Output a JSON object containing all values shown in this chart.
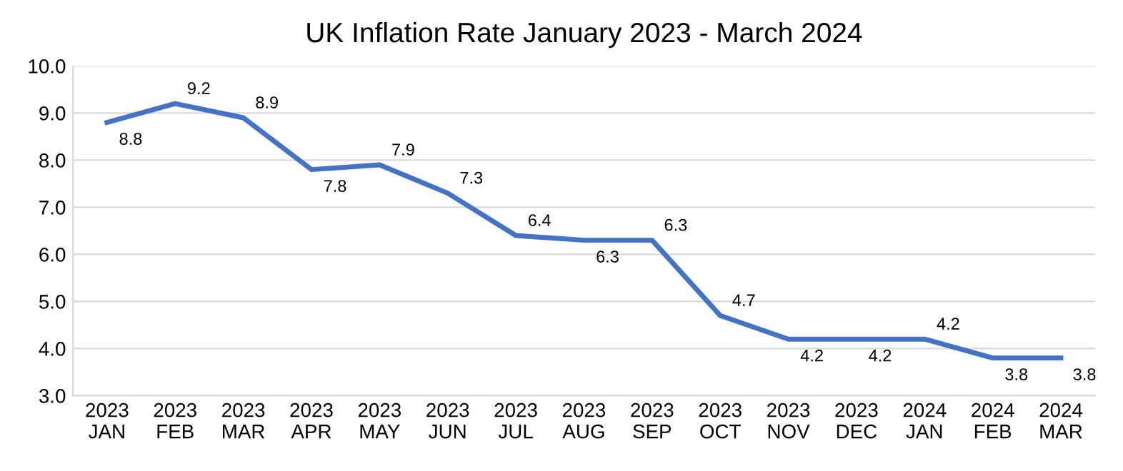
{
  "chart_data": {
    "type": "line",
    "title": "UK Inflation Rate January 2023 - March 2024",
    "categories": [
      "2023\nJAN",
      "2023\nFEB",
      "2023\nMAR",
      "2023\nAPR",
      "2023\nMAY",
      "2023\nJUN",
      "2023\nJUL",
      "2023\nAUG",
      "2023\nSEP",
      "2023\nOCT",
      "2023\nNOV",
      "2023\nDEC",
      "2024\nJAN",
      "2024\nFEB",
      "2024\nMAR"
    ],
    "series": [
      {
        "color": "#4472c4",
        "values": [
          8.8,
          9.2,
          8.9,
          7.8,
          7.9,
          7.3,
          6.4,
          6.3,
          6.3,
          4.7,
          4.2,
          4.2,
          4.2,
          3.8,
          3.8
        ]
      }
    ],
    "ylim": [
      3,
      10
    ],
    "yticks": [
      {
        "value": 3,
        "label": "3.0"
      },
      {
        "value": 4,
        "label": "4.0"
      },
      {
        "value": 5,
        "label": "5.0"
      },
      {
        "value": 6,
        "label": "6.0"
      },
      {
        "value": 7,
        "label": "7.0"
      },
      {
        "value": 8,
        "label": "8.0"
      },
      {
        "value": 9,
        "label": "9.0"
      },
      {
        "value": 10,
        "label": "10.0"
      }
    ],
    "grid": "y",
    "data_labels": true,
    "marker": "none",
    "line_style": "solid"
  }
}
